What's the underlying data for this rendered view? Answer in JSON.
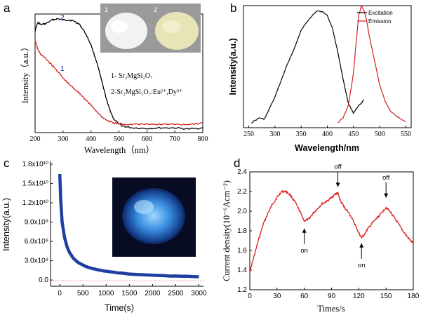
{
  "figure_panels": [
    "a",
    "b",
    "c",
    "d"
  ],
  "chart_data": [
    {
      "panel": "a",
      "type": "line",
      "xlabel": "Wavelength（nm）",
      "ylabel": "Intensity（a.u.）",
      "xlim": [
        200,
        800
      ],
      "ylim": [
        0,
        1
      ],
      "xticks": [
        "200",
        "300",
        "400",
        "500",
        "600",
        "700",
        "800"
      ],
      "legend": [
        "1- Sr₂MgSi₂O₇",
        "2-Sr₂MgSi₂O₇:Eu²⁺,Dy³⁺"
      ],
      "curve_labels": [
        "1",
        "2"
      ],
      "inset_labels": [
        "1",
        "2"
      ],
      "series": [
        {
          "name": "2",
          "color": "#000000",
          "x": [
            200,
            210,
            220,
            240,
            260,
            280,
            300,
            320,
            340,
            360,
            380,
            400,
            420,
            440,
            460,
            480,
            500,
            520,
            550,
            600,
            650,
            700,
            750,
            800
          ],
          "y": [
            0.86,
            0.93,
            0.91,
            0.92,
            0.95,
            0.96,
            0.95,
            0.95,
            0.94,
            0.91,
            0.84,
            0.74,
            0.6,
            0.42,
            0.24,
            0.12,
            0.07,
            0.05,
            0.04,
            0.035,
            0.04,
            0.04,
            0.03,
            0.04
          ]
        },
        {
          "name": "1",
          "color": "#d42020",
          "x": [
            200,
            210,
            220,
            240,
            260,
            280,
            300,
            320,
            340,
            360,
            380,
            400,
            420,
            440,
            460,
            480,
            500,
            520,
            550,
            600,
            650,
            700,
            750,
            800
          ],
          "y": [
            0.78,
            0.7,
            0.66,
            0.62,
            0.57,
            0.52,
            0.46,
            0.41,
            0.37,
            0.33,
            0.28,
            0.23,
            0.18,
            0.13,
            0.1,
            0.08,
            0.075,
            0.07,
            0.07,
            0.07,
            0.07,
            0.07,
            0.07,
            0.08
          ]
        }
      ]
    },
    {
      "panel": "b",
      "type": "line",
      "xlabel": "Wavelength/nm",
      "ylabel": "Intensity(a.u.)",
      "xlim": [
        240,
        560
      ],
      "ylim": [
        0,
        1
      ],
      "xticks": [
        "250",
        "300",
        "350",
        "400",
        "450",
        "500",
        "550"
      ],
      "legend": [
        "Excitation",
        "Emission"
      ],
      "series": [
        {
          "name": "Excitation",
          "color": "#000000",
          "x": [
            255,
            270,
            280,
            300,
            320,
            340,
            350,
            360,
            370,
            380,
            390,
            400,
            410,
            420,
            430,
            440,
            450,
            460,
            465,
            470
          ],
          "y": [
            0.04,
            0.08,
            0.07,
            0.25,
            0.48,
            0.68,
            0.8,
            0.86,
            0.91,
            0.96,
            0.95,
            0.92,
            0.81,
            0.62,
            0.4,
            0.2,
            0.12,
            0.18,
            0.2,
            0.23
          ]
        },
        {
          "name": "Emission",
          "color": "#d42020",
          "x": [
            420,
            430,
            440,
            450,
            455,
            460,
            465,
            470,
            475,
            480,
            490,
            500,
            510,
            520,
            530,
            540,
            550
          ],
          "y": [
            0.04,
            0.08,
            0.18,
            0.45,
            0.7,
            0.92,
            1.0,
            0.96,
            0.88,
            0.75,
            0.55,
            0.35,
            0.22,
            0.14,
            0.1,
            0.07,
            0.05
          ]
        }
      ]
    },
    {
      "panel": "c",
      "type": "line",
      "xlabel": "Time(s)",
      "ylabel": "Intensity(a.u.)",
      "xlim": [
        -200,
        3100
      ],
      "ylim": [
        -100000000,
        18000000000
      ],
      "xticks": [
        "0",
        "500",
        "1000",
        "1500",
        "2000",
        "2500",
        "3000"
      ],
      "yticks": [
        "0.0",
        "3.0x10⁹",
        "6.0x10⁹",
        "9.0x10⁹",
        "1.2x10¹⁰",
        "1.5x10¹⁰",
        "1.8x10¹⁰"
      ],
      "series": [
        {
          "name": "afterglow decay",
          "color": "#1f3fa0",
          "x": [
            0,
            20,
            50,
            100,
            150,
            200,
            300,
            400,
            500,
            600,
            800,
            1000,
            1250,
            1500,
            2000,
            2500,
            3000
          ],
          "y": [
            16500000000,
            12500000000,
            9000000000,
            6700000000,
            5300000000,
            4400000000,
            3300000000,
            2700000000,
            2300000000,
            2000000000,
            1600000000,
            1350000000,
            1100000000,
            950000000,
            750000000,
            600000000,
            500000000
          ]
        }
      ]
    },
    {
      "panel": "d",
      "type": "line",
      "xlabel": "Times/s",
      "ylabel": "Current density(10⁻⁶Acm⁻²)",
      "xlim": [
        0,
        180
      ],
      "ylim": [
        1.2,
        2.4
      ],
      "xticks": [
        "0",
        "30",
        "60",
        "90",
        "120",
        "150",
        "180"
      ],
      "yticks": [
        "1.2",
        "1.4",
        "1.6",
        "1.8",
        "2.0",
        "2.2",
        "2.4"
      ],
      "annotations": [
        {
          "text": "on",
          "x": 60,
          "y": 1.88
        },
        {
          "text": "off",
          "x": 97,
          "y": 2.19
        },
        {
          "text": "on",
          "x": 123,
          "y": 1.73
        },
        {
          "text": "off",
          "x": 150,
          "y": 2.08
        }
      ],
      "series": [
        {
          "name": "photocurrent",
          "color": "#e02020",
          "x": [
            0,
            5,
            10,
            15,
            20,
            25,
            30,
            35,
            40,
            45,
            50,
            55,
            60,
            65,
            70,
            75,
            80,
            85,
            90,
            95,
            97,
            100,
            105,
            110,
            115,
            120,
            123,
            125,
            130,
            135,
            140,
            145,
            150,
            155,
            160,
            165,
            170,
            175,
            180
          ],
          "y": [
            1.38,
            1.55,
            1.72,
            1.87,
            1.98,
            2.07,
            2.14,
            2.2,
            2.2,
            2.16,
            2.09,
            2.0,
            1.9,
            1.92,
            1.98,
            2.03,
            2.08,
            2.1,
            2.14,
            2.18,
            2.18,
            2.1,
            2.03,
            1.97,
            1.88,
            1.78,
            1.73,
            1.75,
            1.82,
            1.88,
            1.93,
            1.98,
            2.04,
            1.99,
            1.92,
            1.85,
            1.78,
            1.72,
            1.67
          ]
        }
      ]
    }
  ]
}
